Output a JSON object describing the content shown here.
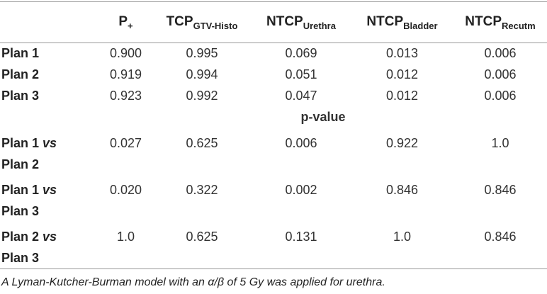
{
  "table": {
    "header": [
      {
        "main": "P",
        "sub": "+"
      },
      {
        "main": "TCP",
        "sub": "GTV-Histo"
      },
      {
        "main": "NTCP",
        "sub": "Urethra"
      },
      {
        "main": "NTCP",
        "sub": "Bladder"
      },
      {
        "main": "NTCP",
        "sub": "Recutm"
      }
    ],
    "rows": [
      {
        "label": "Plan 1",
        "cells": [
          "0.900",
          "0.995",
          "0.069",
          "0.013",
          "0.006"
        ]
      },
      {
        "label": "Plan 2",
        "cells": [
          "0.919",
          "0.994",
          "0.051",
          "0.012",
          "0.006"
        ]
      },
      {
        "label": "Plan 3",
        "cells": [
          "0.923",
          "0.992",
          "0.047",
          "0.012",
          "0.006"
        ]
      }
    ],
    "section": "p-value",
    "comparisons": [
      {
        "label": [
          "Plan 1",
          "vs",
          "Plan 2"
        ],
        "cells": [
          "0.027",
          "0.625",
          "0.006",
          "0.922",
          "1.0"
        ]
      },
      {
        "label": [
          "Plan 1",
          "vs",
          "Plan 3"
        ],
        "cells": [
          "0.020",
          "0.322",
          "0.002",
          "0.846",
          "0.846"
        ]
      },
      {
        "label": [
          "Plan 2",
          "vs",
          "Plan 3"
        ],
        "cells": [
          "1.0",
          "0.625",
          "0.131",
          "1.0",
          "0.846"
        ]
      }
    ]
  },
  "footnote": "A Lyman-Kutcher-Burman model with an α/β of 5 Gy was applied for urethra."
}
